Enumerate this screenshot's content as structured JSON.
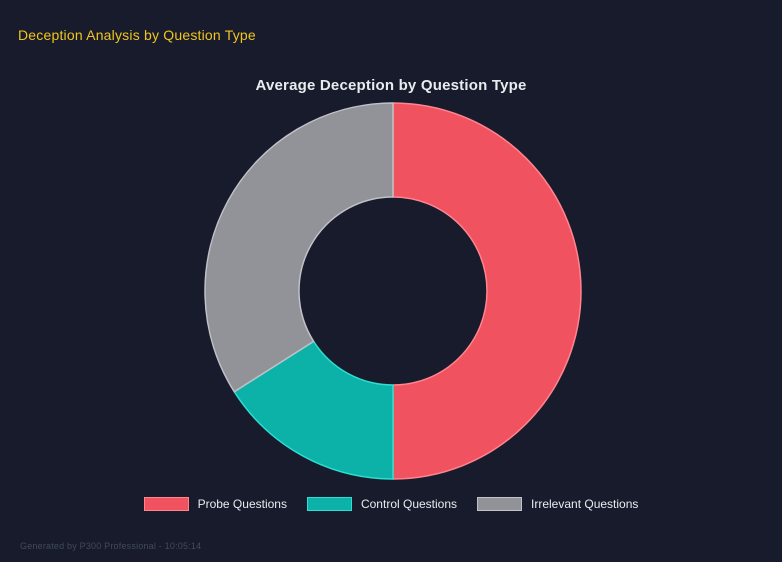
{
  "page": {
    "title": "Deception Analysis by Question Type",
    "footer": "Generated by P300 Professional - 10:05:14"
  },
  "theme": {
    "background": "#171b2b",
    "title_color": "#f2c51d",
    "chart_title_color": "#e9ecef",
    "legend_text_color": "#e9ecef",
    "footer_color": "#424a5e"
  },
  "chart_data": {
    "type": "pie",
    "subtype": "doughnut",
    "title": "Average Deception by Question Type",
    "categories": [
      "Probe Questions",
      "Control Questions",
      "Irrelevant Questions"
    ],
    "values": [
      50,
      16,
      34
    ],
    "unit": "percent share of ring (estimated from arc angles)",
    "colors": [
      "#f0525f",
      "#0cb2a8",
      "#919399"
    ],
    "border_colors": [
      "#ff8490",
      "#2bdfd2",
      "#c0c2c7"
    ],
    "cutout_ratio": 0.5,
    "start_angle_deg": 0,
    "direction": "clockwise",
    "legend_position": "bottom",
    "data_labels": false,
    "grid": false
  }
}
